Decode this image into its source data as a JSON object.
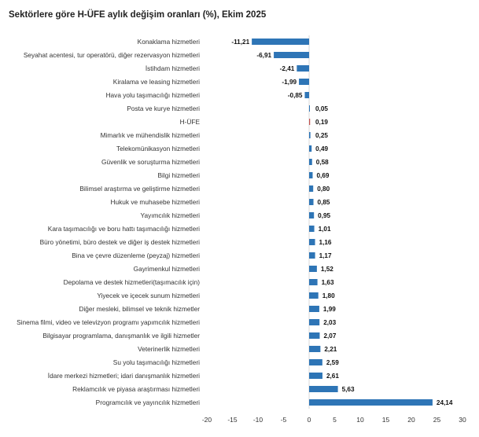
{
  "chart_data": {
    "type": "bar",
    "orientation": "horizontal",
    "title": "Sektörlere göre H-ÜFE aylık değişim oranları (%), Ekim 2025",
    "xlabel": "",
    "ylabel": "",
    "xlim": [
      -20,
      30
    ],
    "xticks": [
      -20,
      -15,
      -10,
      -5,
      0,
      5,
      10,
      15,
      20,
      25,
      30
    ],
    "tick_labels": [
      "-20",
      "-15",
      "-10",
      "-5",
      "0",
      "5",
      "10",
      "15",
      "20",
      "25",
      "30"
    ],
    "grid": false,
    "legend": false,
    "colors": {
      "bar": "#2e75b6",
      "highlight": "#c0504d"
    },
    "bars": [
      {
        "category": "Konaklama hizmetleri",
        "value": -11.21,
        "label": "-11,21"
      },
      {
        "category": "Seyahat acentesi, tur operatörü, diğer rezervasyon hizmetleri",
        "value": -6.91,
        "label": "-6,91"
      },
      {
        "category": "İstihdam hizmetleri",
        "value": -2.41,
        "label": "-2,41"
      },
      {
        "category": "Kiralama ve leasing hizmetleri",
        "value": -1.99,
        "label": "-1,99"
      },
      {
        "category": "Hava yolu taşımacılığı hizmetleri",
        "value": -0.85,
        "label": "-0,85"
      },
      {
        "category": "Posta ve kurye hizmetleri",
        "value": 0.05,
        "label": "0,05"
      },
      {
        "category": "H-ÜFE",
        "value": 0.19,
        "label": "0,19",
        "highlight": true
      },
      {
        "category": "Mimarlık ve mühendislik hizmetleri",
        "value": 0.25,
        "label": "0,25"
      },
      {
        "category": "Telekomünikasyon hizmetleri",
        "value": 0.49,
        "label": "0,49"
      },
      {
        "category": "Güvenlik ve soruşturma hizmetleri",
        "value": 0.58,
        "label": "0,58"
      },
      {
        "category": "Bilgi hizmetleri",
        "value": 0.69,
        "label": "0,69"
      },
      {
        "category": "Bilimsel araştırma ve geliştirme hizmetleri",
        "value": 0.8,
        "label": "0,80"
      },
      {
        "category": "Hukuk ve muhasebe hizmetleri",
        "value": 0.85,
        "label": "0,85"
      },
      {
        "category": "Yayımcılık hizmetleri",
        "value": 0.95,
        "label": "0,95"
      },
      {
        "category": "Kara taşımacılığı ve boru hattı taşımacılığı hizmetleri",
        "value": 1.01,
        "label": "1,01"
      },
      {
        "category": "Büro yönetimi, büro destek ve diğer iş destek hizmetleri",
        "value": 1.16,
        "label": "1,16"
      },
      {
        "category": "Bina ve çevre düzenleme (peyzaj) hizmetleri",
        "value": 1.17,
        "label": "1,17"
      },
      {
        "category": "Gayrimenkul hizmetleri",
        "value": 1.52,
        "label": "1,52"
      },
      {
        "category": "Depolama ve destek hizmetleri(taşımacılık için)",
        "value": 1.63,
        "label": "1,63"
      },
      {
        "category": "Yiyecek ve içecek sunum hizmetleri",
        "value": 1.8,
        "label": "1,80"
      },
      {
        "category": "Diğer mesleki, bilimsel ve teknik hizmetler",
        "value": 1.99,
        "label": "1,99"
      },
      {
        "category": "Sinema filmi, video ve televizyon programı yapımcılık hizmetleri",
        "value": 2.03,
        "label": "2,03"
      },
      {
        "category": "Bilgisayar programlama, danışmanlık ve ilgili hizmetler",
        "value": 2.07,
        "label": "2,07"
      },
      {
        "category": "Veterinerlik hizmetleri",
        "value": 2.21,
        "label": "2,21"
      },
      {
        "category": "Su yolu taşımacılığı hizmetleri",
        "value": 2.59,
        "label": "2,59"
      },
      {
        "category": "İdare merkezi hizmetleri; idari danışmanlık hizmetleri",
        "value": 2.61,
        "label": "2,61"
      },
      {
        "category": "Reklamcılık ve piyasa araştırması hizmetleri",
        "value": 5.63,
        "label": "5,63"
      },
      {
        "category": "Programcılık ve yayıncılık hizmetleri",
        "value": 24.14,
        "label": "24,14"
      }
    ]
  }
}
